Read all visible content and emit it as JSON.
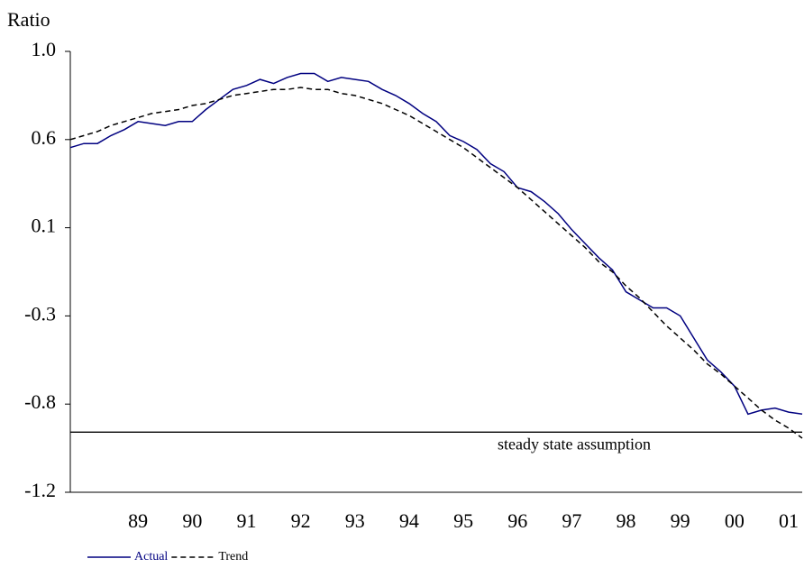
{
  "chart_data": {
    "type": "line",
    "ylabel": "Ratio",
    "x": [
      1988.25,
      1988.5,
      1988.75,
      1989,
      1989.25,
      1989.5,
      1989.75,
      1990,
      1990.25,
      1990.5,
      1990.75,
      1991,
      1991.25,
      1991.5,
      1991.75,
      1992,
      1992.25,
      1992.5,
      1992.75,
      1993,
      1993.25,
      1993.5,
      1993.75,
      1994,
      1994.25,
      1994.5,
      1994.75,
      1995,
      1995.25,
      1995.5,
      1995.75,
      1996,
      1996.25,
      1996.5,
      1996.75,
      1997,
      1997.25,
      1997.5,
      1997.75,
      1998,
      1998.25,
      1998.5,
      1998.75,
      1999,
      1999.25,
      1999.5,
      1999.75,
      2000,
      2000.25,
      2000.5,
      2000.75,
      2001,
      2001.25,
      2001.5,
      2001.75
    ],
    "series": [
      {
        "name": "Actual",
        "color": "#000080",
        "style": "solid",
        "values": [
          0.52,
          0.54,
          0.54,
          0.58,
          0.61,
          0.65,
          0.64,
          0.63,
          0.65,
          0.65,
          0.71,
          0.76,
          0.81,
          0.83,
          0.86,
          0.84,
          0.87,
          0.89,
          0.89,
          0.85,
          0.87,
          0.86,
          0.85,
          0.81,
          0.78,
          0.74,
          0.69,
          0.65,
          0.58,
          0.55,
          0.51,
          0.44,
          0.4,
          0.32,
          0.3,
          0.25,
          0.19,
          0.11,
          0.04,
          -0.03,
          -0.09,
          -0.2,
          -0.24,
          -0.28,
          -0.28,
          -0.32,
          -0.43,
          -0.54,
          -0.6,
          -0.67,
          -0.81,
          -0.79,
          -0.78,
          -0.8,
          -0.81
        ]
      },
      {
        "name": "Trend",
        "color": "#000000",
        "style": "dashed",
        "values": [
          0.56,
          0.58,
          0.6,
          0.63,
          0.65,
          0.67,
          0.69,
          0.7,
          0.71,
          0.73,
          0.74,
          0.76,
          0.78,
          0.79,
          0.8,
          0.81,
          0.81,
          0.82,
          0.81,
          0.81,
          0.79,
          0.78,
          0.76,
          0.74,
          0.71,
          0.68,
          0.64,
          0.6,
          0.56,
          0.52,
          0.47,
          0.42,
          0.37,
          0.32,
          0.26,
          0.2,
          0.14,
          0.08,
          0.02,
          -0.05,
          -0.1,
          -0.17,
          -0.23,
          -0.3,
          -0.37,
          -0.43,
          -0.49,
          -0.56,
          -0.61,
          -0.67,
          -0.73,
          -0.79,
          -0.84,
          -0.88,
          -0.93
        ]
      }
    ],
    "reference_line": {
      "value": -0.9,
      "label": "steady state assumption"
    },
    "xlim": [
      1988.25,
      2001.75
    ],
    "xticks": [
      {
        "value": 1989.5,
        "label": "89"
      },
      {
        "value": 1990.5,
        "label": "90"
      },
      {
        "value": 1991.5,
        "label": "91"
      },
      {
        "value": 1992.5,
        "label": "92"
      },
      {
        "value": 1993.5,
        "label": "93"
      },
      {
        "value": 1994.5,
        "label": "94"
      },
      {
        "value": 1995.5,
        "label": "95"
      },
      {
        "value": 1996.5,
        "label": "96"
      },
      {
        "value": 1997.5,
        "label": "97"
      },
      {
        "value": 1998.5,
        "label": "98"
      },
      {
        "value": 1999.5,
        "label": "99"
      },
      {
        "value": 2000.5,
        "label": "00"
      },
      {
        "value": 2001.5,
        "label": "01"
      }
    ],
    "ylim": [
      -1.2,
      1.0
    ],
    "yticks": [
      -1.2,
      {
        "value": -0.76,
        "label": "-0.8"
      },
      {
        "value": -0.32,
        "label": "-0.3"
      },
      {
        "value": 0.12,
        "label": "0.1"
      },
      {
        "value": 0.56,
        "label": "0.6"
      },
      {
        "value": 1,
        "label": "1.0"
      }
    ],
    "grid": false,
    "legend": "bottom-left"
  }
}
